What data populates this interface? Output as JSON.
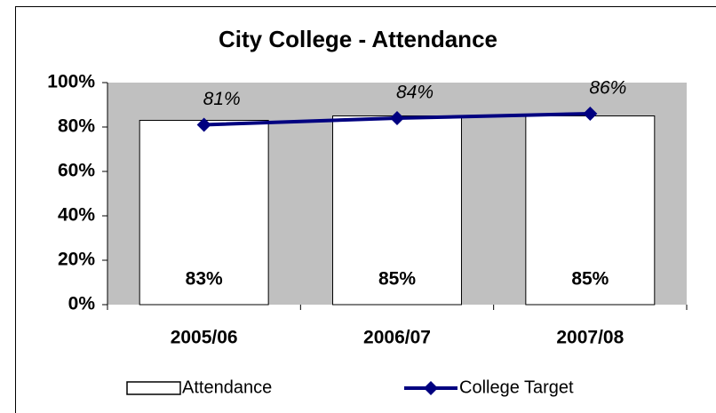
{
  "chart_data": {
    "type": "combo",
    "title": "City College - Attendance",
    "categories": [
      "2005/06",
      "2006/07",
      "2007/08"
    ],
    "series": [
      {
        "name": "Attendance",
        "type": "bar",
        "color": "#ffffff",
        "values": [
          83,
          85,
          85
        ],
        "value_labels": [
          "83%",
          "85%",
          "85%"
        ]
      },
      {
        "name": "College Target",
        "type": "line",
        "color": "#000080",
        "values": [
          81,
          84,
          86
        ],
        "value_labels": [
          "81%",
          "84%",
          "86%"
        ]
      }
    ],
    "ylim": [
      0,
      100
    ],
    "yticks": [
      {
        "value": 0,
        "label": "0%"
      },
      {
        "value": 20,
        "label": "20%"
      },
      {
        "value": 40,
        "label": "40%"
      },
      {
        "value": 60,
        "label": "60%"
      },
      {
        "value": 80,
        "label": "80%"
      },
      {
        "value": 100,
        "label": "100%"
      }
    ],
    "plot_background": "#c0c0c0",
    "legend": "bottom"
  }
}
